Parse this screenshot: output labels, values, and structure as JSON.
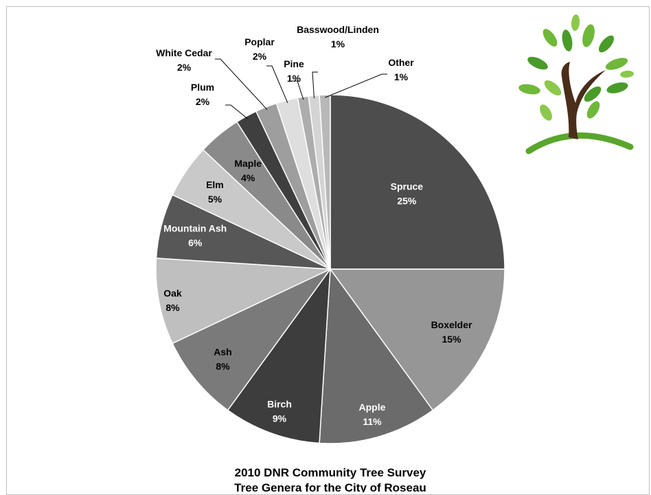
{
  "chart_data": {
    "type": "pie",
    "title": "2010 DNR Community Tree Survey",
    "subtitle": "Tree Genera for the City of Roseau",
    "legend": "none",
    "slices": [
      {
        "label": "Spruce",
        "value": 25,
        "display": "25%",
        "color": "#4d4d4d",
        "text_color": "#ffffff"
      },
      {
        "label": "Boxelder",
        "value": 15,
        "display": "15%",
        "color": "#969696",
        "text_color": "#000000"
      },
      {
        "label": "Apple",
        "value": 11,
        "display": "11%",
        "color": "#6b6b6b",
        "text_color": "#ffffff"
      },
      {
        "label": "Birch",
        "value": 9,
        "display": "9%",
        "color": "#3d3d3d",
        "text_color": "#ffffff"
      },
      {
        "label": "Ash",
        "value": 8,
        "display": "8%",
        "color": "#7a7a7a",
        "text_color": "#000000"
      },
      {
        "label": "Oak",
        "value": 8,
        "display": "8%",
        "color": "#bfbfbf",
        "text_color": "#000000"
      },
      {
        "label": "Mountain Ash",
        "value": 6,
        "display": "6%",
        "color": "#575757",
        "text_color": "#ffffff"
      },
      {
        "label": "Elm",
        "value": 5,
        "display": "5%",
        "color": "#c9c9c9",
        "text_color": "#000000"
      },
      {
        "label": "Maple",
        "value": 4,
        "display": "4%",
        "color": "#8a8a8a",
        "text_color": "#000000"
      },
      {
        "label": "Plum",
        "value": 2,
        "display": "2%",
        "color": "#3f3f3f",
        "text_color": "#000000"
      },
      {
        "label": "White Cedar",
        "value": 2,
        "display": "2%",
        "color": "#9e9e9e",
        "text_color": "#000000"
      },
      {
        "label": "Poplar",
        "value": 2,
        "display": "2%",
        "color": "#dedede",
        "text_color": "#000000"
      },
      {
        "label": "Pine",
        "value": 1,
        "display": "1%",
        "color": "#adadad",
        "text_color": "#000000"
      },
      {
        "label": "Basswood/Linden",
        "value": 1,
        "display": "1%",
        "color": "#d4d4d4",
        "text_color": "#000000"
      },
      {
        "label": "Other",
        "value": 1,
        "display": "1%",
        "color": "#b8b8b8",
        "text_color": "#000000"
      }
    ]
  },
  "logo": {
    "name": "tree-logo",
    "trunk_color": "#4a2e1a",
    "leaf_color": "#6fb83a",
    "ground_color": "#5aa62c"
  }
}
